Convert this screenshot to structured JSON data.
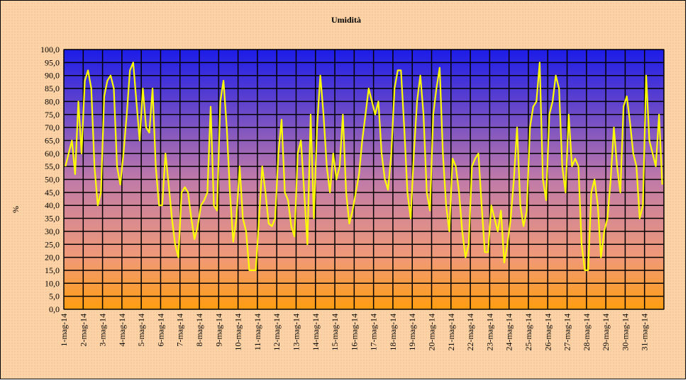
{
  "chart_data": {
    "type": "line",
    "title": "Umidità",
    "y_label": "%",
    "categories": [
      "1-mag-14",
      null,
      null,
      null,
      null,
      null,
      "2-mag-14",
      null,
      null,
      null,
      null,
      null,
      "3-mag-14",
      null,
      null,
      null,
      null,
      null,
      "4-mag-14",
      null,
      null,
      null,
      null,
      null,
      "5-mag-14",
      null,
      null,
      null,
      null,
      null,
      "6-mag-14",
      null,
      null,
      null,
      null,
      null,
      "7-mag-14",
      null,
      null,
      null,
      null,
      null,
      "8-mag-14",
      null,
      null,
      null,
      null,
      null,
      "9-mag-14",
      null,
      null,
      null,
      null,
      null,
      "10-mag-14",
      null,
      null,
      null,
      null,
      null,
      "11-mag-14",
      null,
      null,
      null,
      null,
      null,
      "12-mag-14",
      null,
      null,
      null,
      null,
      null,
      "13-mag-14",
      null,
      null,
      null,
      null,
      null,
      "14-mag-14",
      null,
      null,
      null,
      null,
      null,
      "15-mag-14",
      null,
      null,
      null,
      null,
      null,
      "16-mag-14",
      null,
      null,
      null,
      null,
      null,
      "17-mag-14",
      null,
      null,
      null,
      null,
      null,
      "18-mag-14",
      null,
      null,
      null,
      null,
      null,
      "19-mag-14",
      null,
      null,
      null,
      null,
      null,
      "20-mag-14",
      null,
      null,
      null,
      null,
      null,
      "21-mag-14",
      null,
      null,
      null,
      null,
      null,
      "22-mag-14",
      null,
      null,
      null,
      null,
      null,
      "23-mag-14",
      null,
      null,
      null,
      null,
      null,
      "24-mag-14",
      null,
      null,
      null,
      null,
      null,
      "25-mag-14",
      null,
      null,
      null,
      null,
      null,
      "26-mag-14",
      null,
      null,
      null,
      null,
      null,
      "27-mag-14",
      null,
      null,
      null,
      null,
      null,
      "28-mag-14",
      null,
      null,
      null,
      null,
      null,
      "29-mag-14",
      null,
      null,
      null,
      null,
      null,
      "30-mag-14",
      null,
      null,
      null,
      null,
      null,
      "31-mag-14",
      null,
      null,
      null,
      null,
      null
    ],
    "series": [
      {
        "name": "Umidità",
        "color": "#ffff00",
        "values": [
          55,
          60,
          65,
          52,
          80,
          60,
          88,
          92,
          85,
          55,
          40,
          45,
          82,
          88,
          90,
          85,
          55,
          48,
          60,
          75,
          92,
          95,
          80,
          65,
          85,
          70,
          68,
          85,
          55,
          40,
          40,
          60,
          48,
          35,
          25,
          20,
          45,
          47,
          45,
          35,
          27,
          32,
          40,
          42,
          45,
          78,
          40,
          38,
          80,
          88,
          70,
          45,
          26,
          35,
          55,
          35,
          30,
          15,
          15,
          15,
          35,
          55,
          45,
          33,
          32,
          35,
          60,
          73,
          45,
          42,
          32,
          28,
          60,
          65,
          45,
          25,
          75,
          35,
          70,
          90,
          75,
          55,
          45,
          60,
          50,
          55,
          75,
          45,
          33,
          38,
          45,
          52,
          65,
          75,
          85,
          80,
          75,
          80,
          60,
          50,
          46,
          60,
          85,
          92,
          92,
          70,
          45,
          35,
          60,
          80,
          90,
          75,
          45,
          38,
          75,
          85,
          93,
          60,
          40,
          30,
          58,
          55,
          45,
          30,
          20,
          25,
          55,
          58,
          60,
          40,
          22,
          22,
          40,
          35,
          30,
          38,
          18,
          25,
          35,
          50,
          70,
          40,
          32,
          38,
          70,
          78,
          80,
          95,
          50,
          42,
          75,
          80,
          90,
          85,
          55,
          45,
          75,
          55,
          58,
          55,
          25,
          15,
          15,
          45,
          50,
          40,
          20,
          30,
          35,
          50,
          70,
          55,
          45,
          78,
          82,
          72,
          60,
          55,
          35,
          40,
          90,
          65,
          60,
          55,
          75,
          48
        ]
      }
    ],
    "ylim": [
      0,
      100
    ],
    "yticks": [
      {
        "value": 0,
        "label": "0,0"
      },
      {
        "value": 5,
        "label": "5,0"
      },
      {
        "value": 10,
        "label": "10,0"
      },
      {
        "value": 15,
        "label": "15,0"
      },
      {
        "value": 20,
        "label": "20,0"
      },
      {
        "value": 25,
        "label": "25,0"
      },
      {
        "value": 30,
        "label": "30,0"
      },
      {
        "value": 35,
        "label": "35,0"
      },
      {
        "value": 40,
        "label": "40,0"
      },
      {
        "value": 45,
        "label": "45,0"
      },
      {
        "value": 50,
        "label": "50,0"
      },
      {
        "value": 55,
        "label": "55,0"
      },
      {
        "value": 60,
        "label": "60,0"
      },
      {
        "value": 65,
        "label": "65,0"
      },
      {
        "value": 70,
        "label": "70,0"
      },
      {
        "value": 75,
        "label": "75,0"
      },
      {
        "value": 80,
        "label": "80,0"
      },
      {
        "value": 85,
        "label": "85,0"
      },
      {
        "value": 90,
        "label": "90,0"
      },
      {
        "value": 95,
        "label": "95,0"
      },
      {
        "value": 100,
        "label": "100,0"
      }
    ],
    "grid": true
  }
}
